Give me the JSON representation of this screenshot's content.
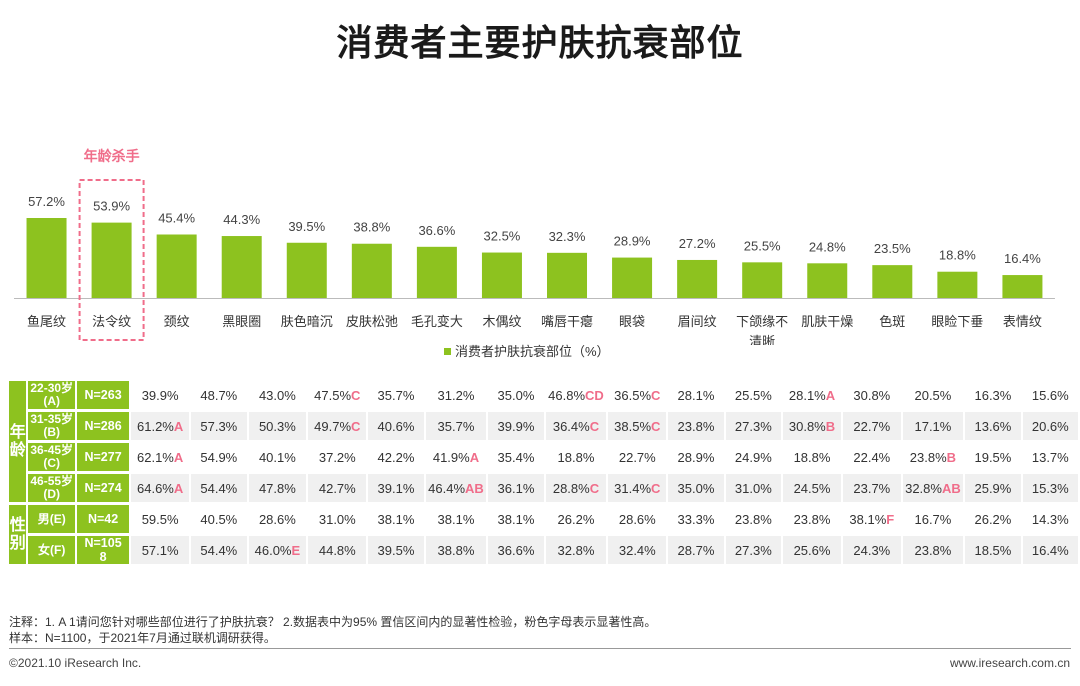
{
  "title": "消费者主要护肤抗衰部位",
  "annotation": "年龄杀手",
  "legend": "消费者护肤抗衰部位（%）",
  "colors": {
    "bar": "#8dc21f",
    "header": "#8dc21f",
    "significant": "#f06d8a",
    "annotation_box": "#f06d8a"
  },
  "chart_data": {
    "type": "bar",
    "categories": [
      "鱼尾纹",
      "法令纹",
      "颈纹",
      "黑眼圈",
      "肤色暗沉",
      "皮肤松弛",
      "毛孔变大",
      "木偶纹",
      "嘴唇干瘪",
      "眼袋",
      "眉间纹",
      "下颌缘不\n清晰",
      "肌肤干燥",
      "色斑",
      "眼睑下垂",
      "表情纹"
    ],
    "value_labels": [
      "57.2%",
      "53.9%",
      "45.4%",
      "44.3%",
      "39.5%",
      "38.8%",
      "36.6%",
      "32.5%",
      "32.3%",
      "28.9%",
      "27.2%",
      "25.5%",
      "24.8%",
      "23.5%",
      "18.8%",
      "16.4%"
    ],
    "series": [
      {
        "name": "消费者护肤抗衰部位（%）",
        "values": [
          57.2,
          53.9,
          45.4,
          44.3,
          39.5,
          38.8,
          36.6,
          32.5,
          32.3,
          28.9,
          27.2,
          25.5,
          24.8,
          23.5,
          18.8,
          16.4
        ]
      }
    ],
    "ylim": [
      0,
      60
    ],
    "highlight_index": 1
  },
  "table": {
    "groups": [
      {
        "label": "年龄",
        "rows": [
          {
            "sub": [
              "22-30岁",
              "(A)"
            ],
            "n": "N=263",
            "cells": [
              [
                "39.9%",
                ""
              ],
              [
                "48.7%",
                ""
              ],
              [
                "43.0%",
                ""
              ],
              [
                "47.5%",
                "C"
              ],
              [
                "35.7%",
                ""
              ],
              [
                "31.2%",
                ""
              ],
              [
                "35.0%",
                ""
              ],
              [
                "46.8%",
                "CD"
              ],
              [
                "36.5%",
                "C"
              ],
              [
                "28.1%",
                ""
              ],
              [
                "25.5%",
                ""
              ],
              [
                "28.1%",
                "A"
              ],
              [
                "30.8%",
                ""
              ],
              [
                "20.5%",
                ""
              ],
              [
                "16.3%",
                ""
              ],
              [
                "15.6%",
                ""
              ]
            ]
          },
          {
            "sub": [
              "31-35岁",
              "(B)"
            ],
            "n": "N=286",
            "cells": [
              [
                "61.2%",
                "A"
              ],
              [
                "57.3%",
                ""
              ],
              [
                "50.3%",
                ""
              ],
              [
                "49.7%",
                "C"
              ],
              [
                "40.6%",
                ""
              ],
              [
                "35.7%",
                ""
              ],
              [
                "39.9%",
                ""
              ],
              [
                "36.4%",
                "C"
              ],
              [
                "38.5%",
                "C"
              ],
              [
                "23.8%",
                ""
              ],
              [
                "27.3%",
                ""
              ],
              [
                "30.8%",
                "B"
              ],
              [
                "22.7%",
                ""
              ],
              [
                "17.1%",
                ""
              ],
              [
                "13.6%",
                ""
              ],
              [
                "20.6%",
                ""
              ]
            ]
          },
          {
            "sub": [
              "36-45岁",
              "(C)"
            ],
            "n": "N=277",
            "cells": [
              [
                "62.1%",
                "A"
              ],
              [
                "54.9%",
                ""
              ],
              [
                "40.1%",
                ""
              ],
              [
                "37.2%",
                ""
              ],
              [
                "42.2%",
                ""
              ],
              [
                "41.9%",
                "A"
              ],
              [
                "35.4%",
                ""
              ],
              [
                "18.8%",
                ""
              ],
              [
                "22.7%",
                ""
              ],
              [
                "28.9%",
                ""
              ],
              [
                "24.9%",
                ""
              ],
              [
                "18.8%",
                ""
              ],
              [
                "22.4%",
                ""
              ],
              [
                "23.8%",
                "B"
              ],
              [
                "19.5%",
                ""
              ],
              [
                "13.7%",
                ""
              ]
            ]
          },
          {
            "sub": [
              "46-55岁",
              "(D)"
            ],
            "n": "N=274",
            "cells": [
              [
                "64.6%",
                "A"
              ],
              [
                "54.4%",
                ""
              ],
              [
                "47.8%",
                ""
              ],
              [
                "42.7%",
                ""
              ],
              [
                "39.1%",
                ""
              ],
              [
                "46.4%",
                "AB"
              ],
              [
                "36.1%",
                ""
              ],
              [
                "28.8%",
                "C"
              ],
              [
                "31.4%",
                "C"
              ],
              [
                "35.0%",
                ""
              ],
              [
                "31.0%",
                ""
              ],
              [
                "24.5%",
                ""
              ],
              [
                "23.7%",
                ""
              ],
              [
                "32.8%",
                "AB"
              ],
              [
                "25.9%",
                ""
              ],
              [
                "15.3%",
                ""
              ]
            ]
          }
        ]
      },
      {
        "label": "性别",
        "rows": [
          {
            "sub": [
              "男(E)"
            ],
            "n": "N=42",
            "cells": [
              [
                "59.5%",
                ""
              ],
              [
                "40.5%",
                ""
              ],
              [
                "28.6%",
                ""
              ],
              [
                "31.0%",
                ""
              ],
              [
                "38.1%",
                ""
              ],
              [
                "38.1%",
                ""
              ],
              [
                "38.1%",
                ""
              ],
              [
                "26.2%",
                ""
              ],
              [
                "28.6%",
                ""
              ],
              [
                "33.3%",
                ""
              ],
              [
                "23.8%",
                ""
              ],
              [
                "23.8%",
                ""
              ],
              [
                "38.1%",
                "F"
              ],
              [
                "16.7%",
                ""
              ],
              [
                "26.2%",
                ""
              ],
              [
                "14.3%",
                ""
              ]
            ]
          },
          {
            "sub": [
              "女(F)"
            ],
            "n": "N=105\n8",
            "cells": [
              [
                "57.1%",
                ""
              ],
              [
                "54.4%",
                ""
              ],
              [
                "46.0%",
                "E"
              ],
              [
                "44.8%",
                ""
              ],
              [
                "39.5%",
                ""
              ],
              [
                "38.8%",
                ""
              ],
              [
                "36.6%",
                ""
              ],
              [
                "32.8%",
                ""
              ],
              [
                "32.4%",
                ""
              ],
              [
                "28.7%",
                ""
              ],
              [
                "27.3%",
                ""
              ],
              [
                "25.6%",
                ""
              ],
              [
                "24.3%",
                ""
              ],
              [
                "23.8%",
                ""
              ],
              [
                "18.5%",
                ""
              ],
              [
                "16.4%",
                ""
              ]
            ]
          }
        ]
      }
    ]
  },
  "notes": {
    "line1": "注释：1. A 1请问您针对哪些部位进行了护肤抗衰？ 2.数据表中为95% 置信区间内的显著性检验，粉色字母表示显著性高。",
    "line2": "样本：N=1100，于2021年7月通过联机调研获得。"
  },
  "footer": {
    "copyright": "©2021.10 iResearch Inc.",
    "website": "www.iresearch.com.cn"
  }
}
